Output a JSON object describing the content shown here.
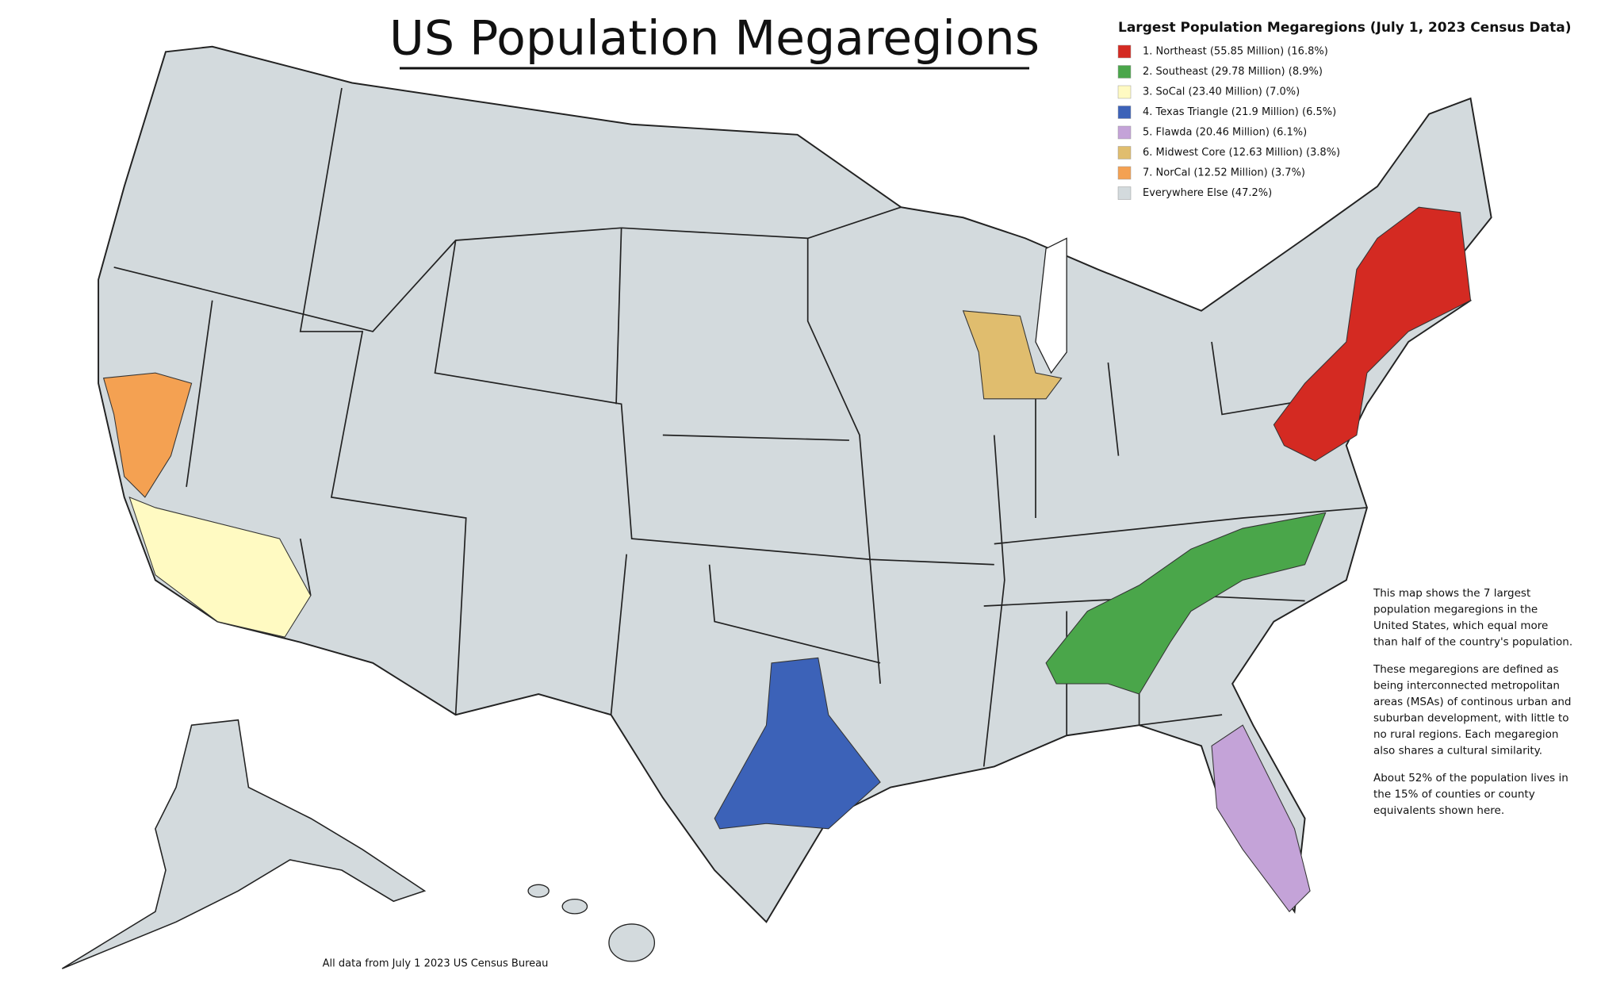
{
  "title": "US Population Megaregions",
  "legend": {
    "title": "Largest Population Megaregions (July 1, 2023 Census Data)",
    "items": [
      {
        "label": "1. Northeast (55.85 Million) (16.8%)",
        "color": "#d42a22"
      },
      {
        "label": "2. Southeast (29.78 Million) (8.9%)",
        "color": "#4aa64a"
      },
      {
        "label": "3. SoCal (23.40 Million) (7.0%)",
        "color": "#fffac2"
      },
      {
        "label": "4. Texas Triangle (21.9 Million) (6.5%)",
        "color": "#3c62b8"
      },
      {
        "label": "5. Flawda (20.46 Million) (6.1%)",
        "color": "#c4a3d8"
      },
      {
        "label": "6. Midwest Core (12.63 Million) (3.8%)",
        "color": "#e0bd6e"
      },
      {
        "label": "7. NorCal (12.52 Million) (3.7%)",
        "color": "#f4a152"
      },
      {
        "label": "Everywhere Else (47.2%)",
        "color": "#d3dadd"
      }
    ]
  },
  "description": [
    [
      "This map shows the 7 largest",
      "population megaregions in the",
      "United States, which equal more",
      "than half of the country's population."
    ],
    [
      "These megaregions are defined as",
      "being interconnected metropolitan",
      "areas (MSAs) of continous urban and",
      "suburban development, with little to",
      "no rural regions. Each megaregion",
      "also shares a cultural similarity."
    ],
    [
      "About 52% of the population lives in",
      "the 15% of counties or county",
      "equivalents shown here."
    ]
  ],
  "footer": "All data from July 1 2023 US Census Bureau"
}
